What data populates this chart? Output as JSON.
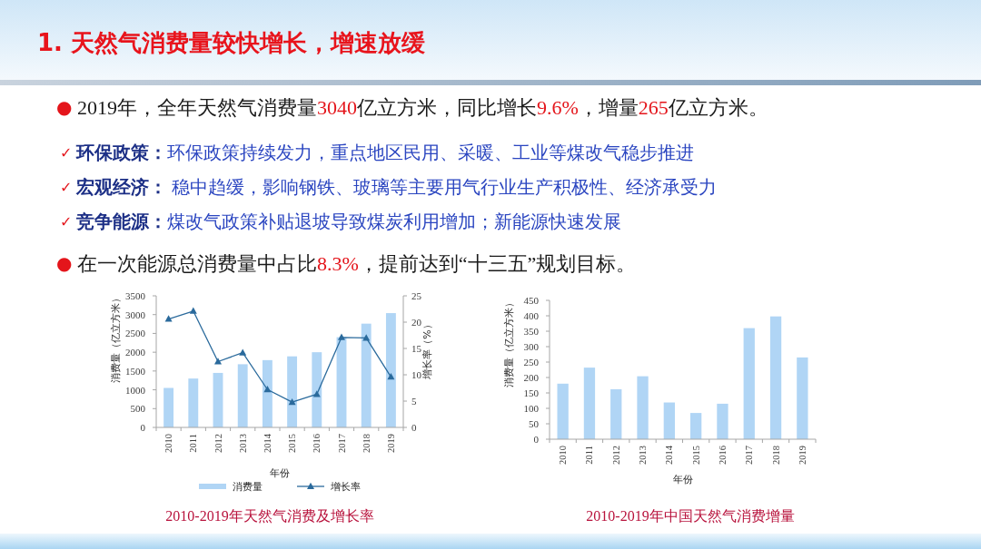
{
  "chart_data": [
    {
      "type": "other",
      "title": "1. 天然气消费量较快增长，增速放缓",
      "annotations": [
        "● 2019年，全年天然气消费量3040亿立方米，同比增长9.6%，增量265亿立方米。",
        "✓ 环保政策：环保政策持续发力，重点地区民用、采暖、工业等煤改气稳步推进",
        "✓ 宏观经济： 稳中趋缓，影响钢铁、玻璃等主要用气行业生产积极性、经济承受力",
        "✓ 竞争能源：煤改气政策补贴退坡导致煤炭利用增加；新能源快速发展",
        "● 在一次能源总消费量中占比8.3%，提前达到“十三五”规划目标。"
      ]
    },
    {
      "type": "bar",
      "categories": [
        "2010",
        "2011",
        "2012",
        "2013",
        "2014",
        "2015",
        "2016",
        "2017",
        "2018",
        "2019"
      ],
      "series": [
        {
          "name": "消费量",
          "type": "bar",
          "color": "#b0d5f5",
          "values": [
            1050,
            1300,
            1450,
            1680,
            1790,
            1890,
            2000,
            2400,
            2760,
            3040
          ]
        },
        {
          "name": "增长率",
          "type": "line",
          "axis": "y2",
          "color": "#2a6a9c",
          "values": [
            20.6,
            22.1,
            12.5,
            14.2,
            7.2,
            4.8,
            6.3,
            17.1,
            17.0,
            9.6
          ]
        }
      ],
      "marker": "triangle",
      "xlabel": "年份",
      "ylabel": "消费量（亿立方米）",
      "y2label": "增长率（%）",
      "ylim": [
        0,
        3500
      ],
      "yticks": [
        0,
        500,
        1000,
        1500,
        2000,
        2500,
        3000,
        3500
      ],
      "y2lim": [
        0,
        25
      ],
      "y2ticks": [
        0,
        5,
        10,
        15,
        20,
        25
      ],
      "legend": "bottom",
      "annotations": [
        "2010-2019年天然气消费及增长率"
      ]
    },
    {
      "type": "bar",
      "categories": [
        "2010",
        "2011",
        "2012",
        "2013",
        "2014",
        "2015",
        "2016",
        "2017",
        "2018",
        "2019"
      ],
      "values": [
        180,
        232,
        162,
        204,
        119,
        85,
        115,
        360,
        398,
        265
      ],
      "color": "#b0d5f5",
      "xlabel": "年份",
      "ylabel": "消费量（亿立方米）",
      "ylim": [
        0,
        450
      ],
      "yticks": [
        0,
        50,
        100,
        150,
        200,
        250,
        300,
        350,
        400,
        450
      ],
      "annotations": [
        "2010-2019年中国天然气消费增量"
      ]
    }
  ]
}
